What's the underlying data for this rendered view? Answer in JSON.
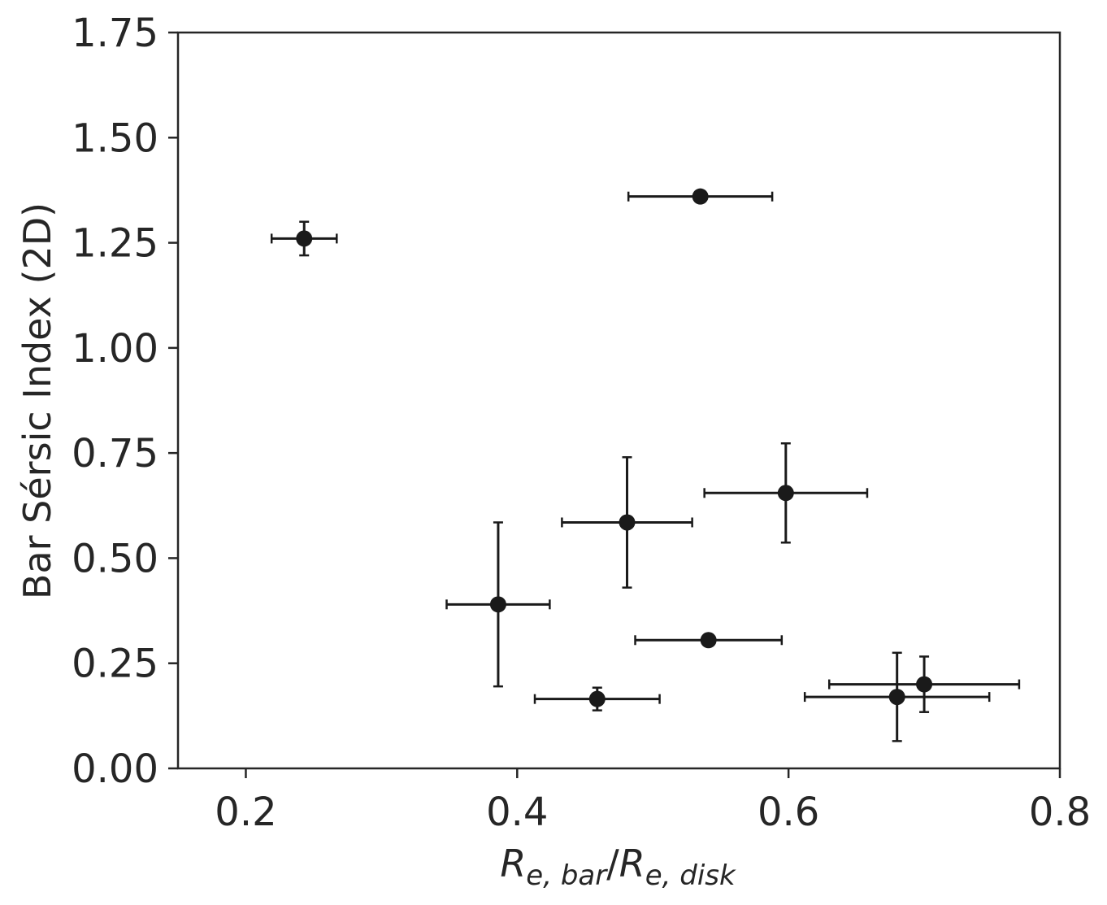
{
  "chart_data": {
    "type": "scatter",
    "title": "",
    "xlabel": "R_{e,bar}/R_{e,disk}",
    "xlabel_parts": {
      "r1": "R",
      "sub1": "e, bar",
      "slash": "/",
      "r2": "R",
      "sub2": "e, disk"
    },
    "ylabel": "Bar Sérsic Index (2D)",
    "xlim": [
      0.15,
      0.8
    ],
    "ylim": [
      0.0,
      1.75
    ],
    "xticks": [
      0.2,
      0.4,
      0.6,
      0.8
    ],
    "xtick_labels": [
      "0.2",
      "0.4",
      "0.6",
      "0.8"
    ],
    "yticks": [
      0.0,
      0.25,
      0.5,
      0.75,
      1.0,
      1.25,
      1.5,
      1.75
    ],
    "ytick_labels": [
      "0.00",
      "0.25",
      "0.50",
      "0.75",
      "1.00",
      "1.25",
      "1.50",
      "1.75"
    ],
    "grid": false,
    "marker_color": "#1a1a1a",
    "axis_color": "#262626",
    "points": [
      {
        "x": 0.243,
        "y": 1.26,
        "xerr": 0.024,
        "yerr": 0.04
      },
      {
        "x": 0.535,
        "y": 1.36,
        "xerr": 0.053,
        "yerr": 0.0
      },
      {
        "x": 0.386,
        "y": 0.39,
        "xerr": 0.038,
        "yerr": 0.195
      },
      {
        "x": 0.481,
        "y": 0.585,
        "xerr": 0.048,
        "yerr": 0.155
      },
      {
        "x": 0.598,
        "y": 0.655,
        "xerr": 0.06,
        "yerr": 0.118
      },
      {
        "x": 0.541,
        "y": 0.305,
        "xerr": 0.054,
        "yerr": 0.0
      },
      {
        "x": 0.459,
        "y": 0.165,
        "xerr": 0.046,
        "yerr": 0.027
      },
      {
        "x": 0.68,
        "y": 0.17,
        "xerr": 0.068,
        "yerr": 0.105
      },
      {
        "x": 0.7,
        "y": 0.2,
        "xerr": 0.07,
        "yerr": 0.066
      }
    ]
  }
}
